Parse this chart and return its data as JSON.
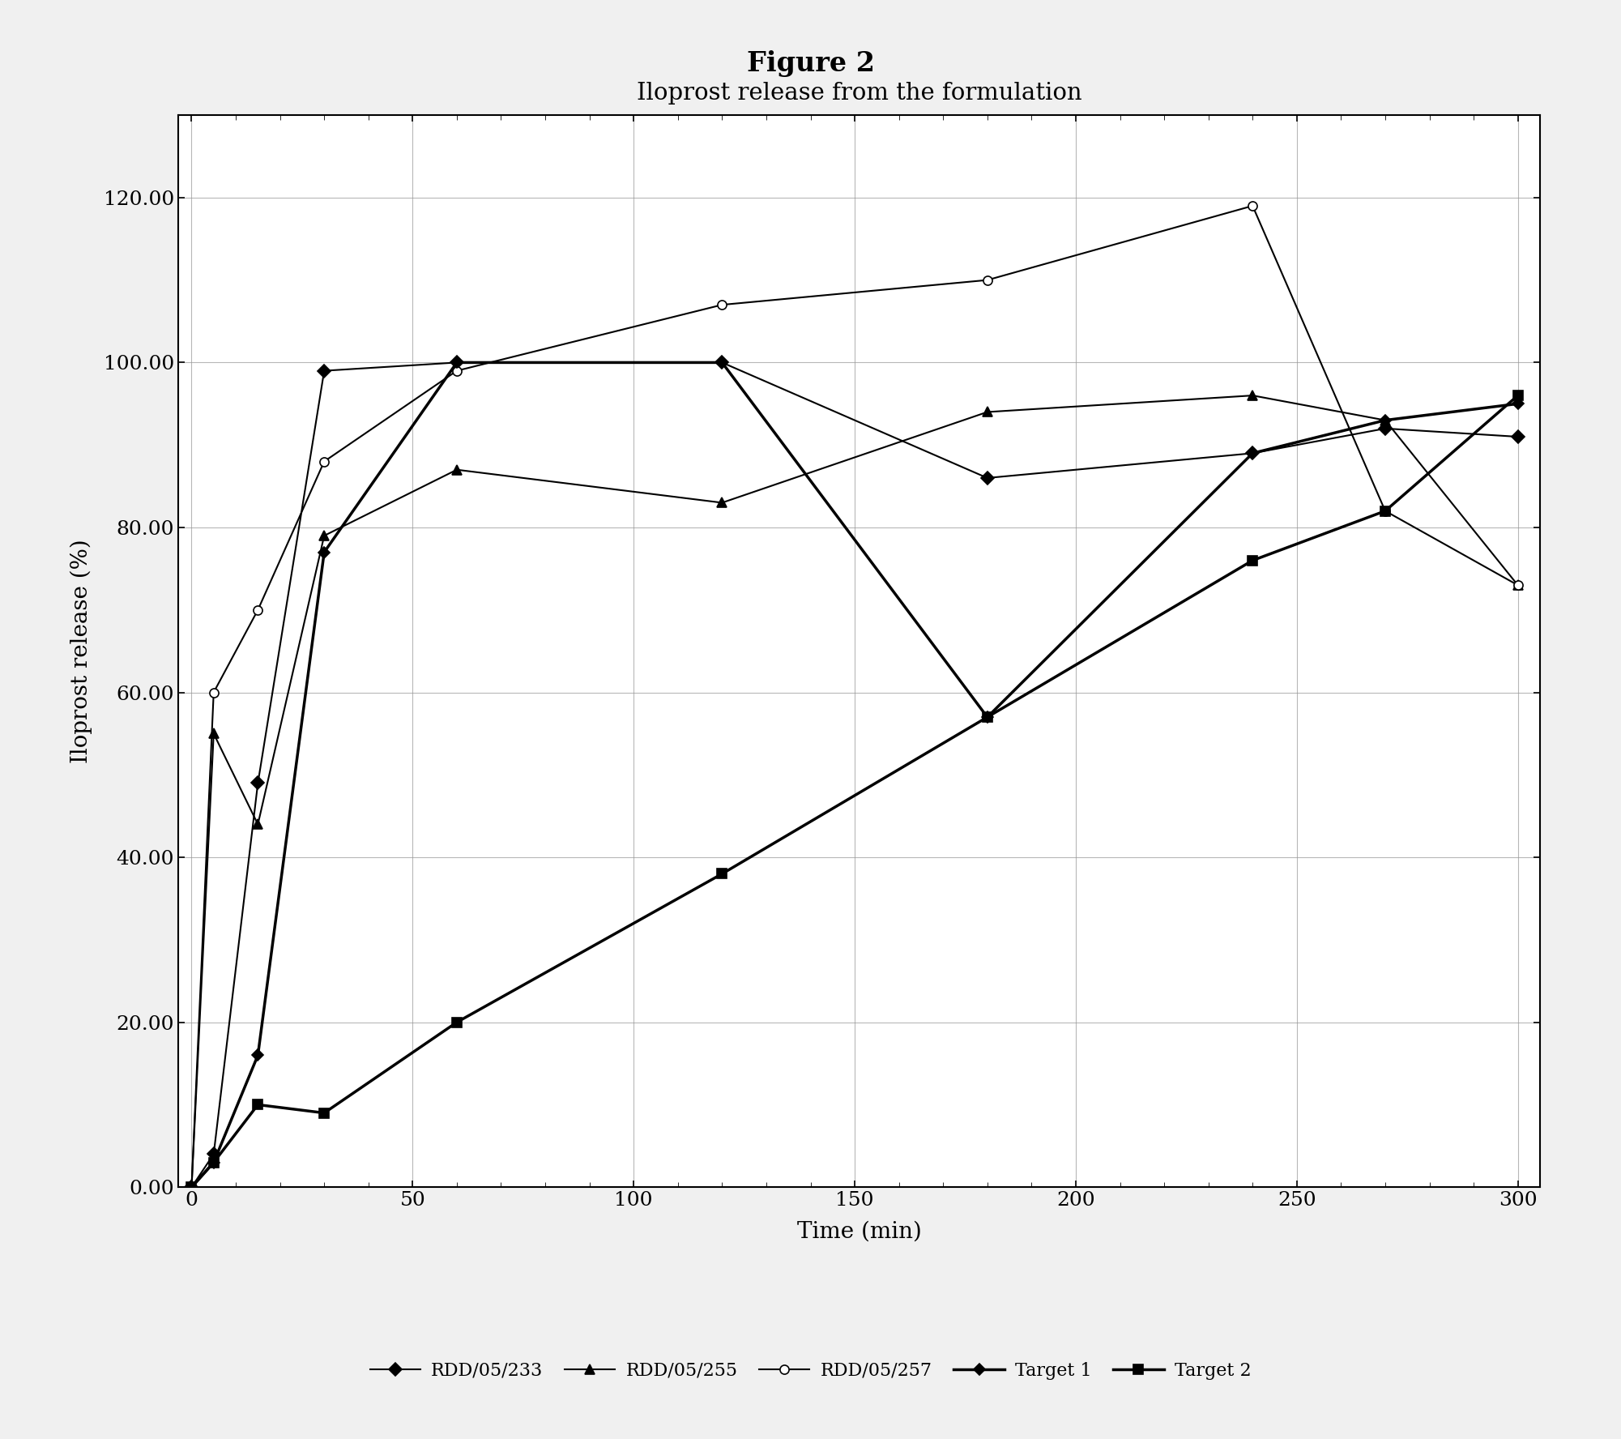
{
  "title": "Figure 2",
  "chart_title": "Iloprost release from the formulation",
  "xlabel": "Time (min)",
  "ylabel": "Iloprost release (%)",
  "xlim": [
    -3,
    305
  ],
  "ylim": [
    0,
    130
  ],
  "yticks": [
    0.0,
    20.0,
    40.0,
    60.0,
    80.0,
    100.0,
    120.0
  ],
  "xticks": [
    0,
    50,
    100,
    150,
    200,
    250,
    300
  ],
  "xtick_labels": [
    "0",
    "50",
    "100",
    "150",
    "200",
    "250",
    "300"
  ],
  "series": [
    {
      "label": "RDD/05/233",
      "x": [
        0,
        5,
        15,
        30,
        60,
        120,
        180,
        240,
        270,
        300
      ],
      "y": [
        0,
        4,
        49,
        99,
        100,
        100,
        86,
        89,
        92,
        91
      ],
      "marker": "D",
      "color": "#000000",
      "linewidth": 1.5,
      "markersize": 8,
      "markerfacecolor": "#000000"
    },
    {
      "label": "RDD/05/255",
      "x": [
        0,
        5,
        15,
        30,
        60,
        120,
        180,
        240,
        270,
        300
      ],
      "y": [
        0,
        55,
        44,
        79,
        87,
        83,
        94,
        96,
        93,
        73
      ],
      "marker": "^",
      "color": "#000000",
      "linewidth": 1.5,
      "markersize": 9,
      "markerfacecolor": "#000000"
    },
    {
      "label": "RDD/05/257",
      "x": [
        0,
        5,
        15,
        30,
        60,
        120,
        180,
        240,
        270,
        300
      ],
      "y": [
        0,
        60,
        70,
        88,
        99,
        107,
        110,
        119,
        82,
        73
      ],
      "marker": "o",
      "color": "#000000",
      "linewidth": 1.5,
      "markersize": 8,
      "markerfacecolor": "white"
    },
    {
      "label": "Target 1",
      "x": [
        0,
        5,
        15,
        30,
        60,
        120,
        180,
        240,
        270,
        300
      ],
      "y": [
        0,
        3,
        16,
        77,
        100,
        100,
        57,
        89,
        93,
        95
      ],
      "marker": "D",
      "color": "#000000",
      "linewidth": 2.5,
      "markersize": 7,
      "markerfacecolor": "#000000"
    },
    {
      "label": "Target 2",
      "x": [
        0,
        5,
        15,
        30,
        60,
        120,
        180,
        240,
        270,
        300
      ],
      "y": [
        0,
        3,
        10,
        9,
        20,
        38,
        57,
        76,
        82,
        96
      ],
      "marker": "s",
      "color": "#000000",
      "linewidth": 2.5,
      "markersize": 8,
      "markerfacecolor": "#000000"
    }
  ],
  "background_color": "#f0f0f0",
  "plot_background": "#f5f5f5",
  "inner_box_color": "#ffffff",
  "grid_color": "#999999",
  "grid_linewidth": 0.8
}
